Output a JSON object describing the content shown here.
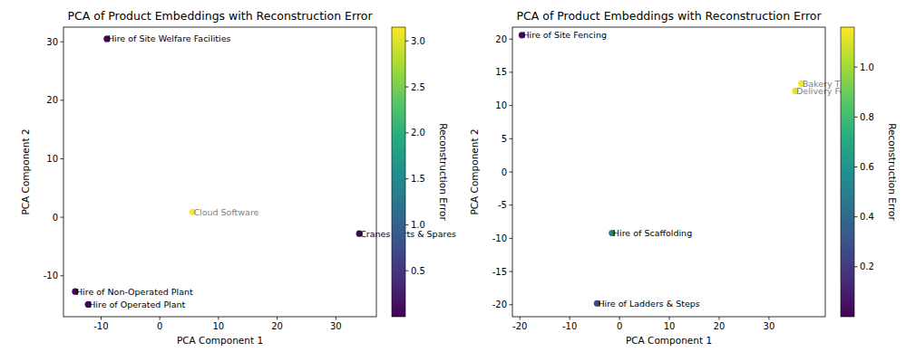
{
  "chart_data": [
    {
      "type": "scatter",
      "title": "PCA of Product Embeddings with Reconstruction Error",
      "x_label": "PCA Component 1",
      "y_label": "PCA Component 2",
      "marker": "circle",
      "labels": [
        "Hire of Site Welfare Facilities",
        "Cloud Software",
        "Cranes Parts & Spares",
        "Hire of Non-Operated Plant",
        "Hire of Operated Plant"
      ],
      "x": [
        -9.0,
        5.6,
        34.0,
        -14.4,
        -12.2
      ],
      "values": [
        30.5,
        0.9,
        -2.8,
        -12.7,
        -14.9
      ],
      "color_values": [
        0.05,
        3.15,
        0.05,
        0.03,
        0.05
      ],
      "colorbar_label": "Reconstruction Error",
      "clim": [
        0.0,
        3.15
      ],
      "cticks": [
        {
          "value": 0.5,
          "label": "0.5"
        },
        {
          "value": 1.0,
          "label": "1.0"
        },
        {
          "value": 1.5,
          "label": "1.5"
        },
        {
          "value": 2.0,
          "label": "2.0"
        },
        {
          "value": 2.5,
          "label": "2.5"
        },
        {
          "value": 3.0,
          "label": "3.0"
        }
      ],
      "xlim": [
        -16.4,
        36.9
      ],
      "ylim": [
        -17.0,
        32.5
      ],
      "xticks": [
        -10,
        0,
        10,
        20,
        30
      ],
      "yticks": [
        -10,
        0,
        10,
        20,
        30
      ],
      "grid": false
    },
    {
      "type": "scatter",
      "title": "PCA of Product Embeddings with Reconstruction Error",
      "x_label": "PCA Component 1",
      "y_label": "PCA Component 2",
      "marker": "circle",
      "labels": [
        "Hire of Site Fencing",
        "Bakery T",
        "Delivery Fe",
        "Hire of Scaffolding",
        "Hire of Ladders & Steps"
      ],
      "x": [
        -19.6,
        36.5,
        35.3,
        -1.5,
        -4.5
      ],
      "values": [
        20.6,
        13.3,
        12.2,
        -9.2,
        -19.8
      ],
      "color_values": [
        0.03,
        1.15,
        1.12,
        0.5,
        0.25
      ],
      "colorbar_label": "Reconstruction Error",
      "clim": [
        0.0,
        1.16
      ],
      "cticks": [
        {
          "value": 0.2,
          "label": "0.2"
        },
        {
          "value": 0.4,
          "label": "0.4"
        },
        {
          "value": 0.6,
          "label": "0.6"
        },
        {
          "value": 0.8,
          "label": "0.8"
        },
        {
          "value": 1.0,
          "label": "1.0"
        }
      ],
      "xlim": [
        -21.5,
        41.3
      ],
      "ylim": [
        -21.8,
        21.8
      ],
      "xticks": [
        -20,
        -10,
        0,
        10,
        20,
        30
      ],
      "yticks": [
        -20,
        -15,
        -10,
        -5,
        0,
        5,
        10,
        15,
        20
      ],
      "grid": false
    }
  ]
}
